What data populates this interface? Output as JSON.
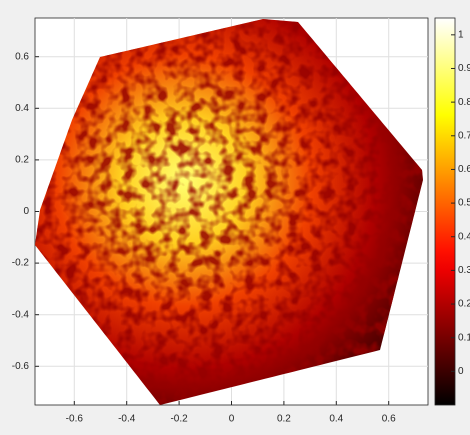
{
  "chart_data": {
    "type": "heatmap",
    "colormap": "hot",
    "xlim": [
      -0.75,
      0.75
    ],
    "xticks": [
      -0.6,
      -0.4,
      -0.2,
      0,
      0.2,
      0.4,
      0.6
    ],
    "ylim": [
      -0.75,
      0.75
    ],
    "yticks": [
      -0.6,
      -0.4,
      -0.2,
      0,
      0.2,
      0.4,
      0.6
    ],
    "grid": true,
    "clim": [
      -0.1,
      1.05
    ],
    "cticks": [
      0,
      0.1,
      0.2,
      0.3,
      0.4,
      0.5,
      0.6,
      0.7,
      0.8,
      0.9,
      1
    ]
  }
}
